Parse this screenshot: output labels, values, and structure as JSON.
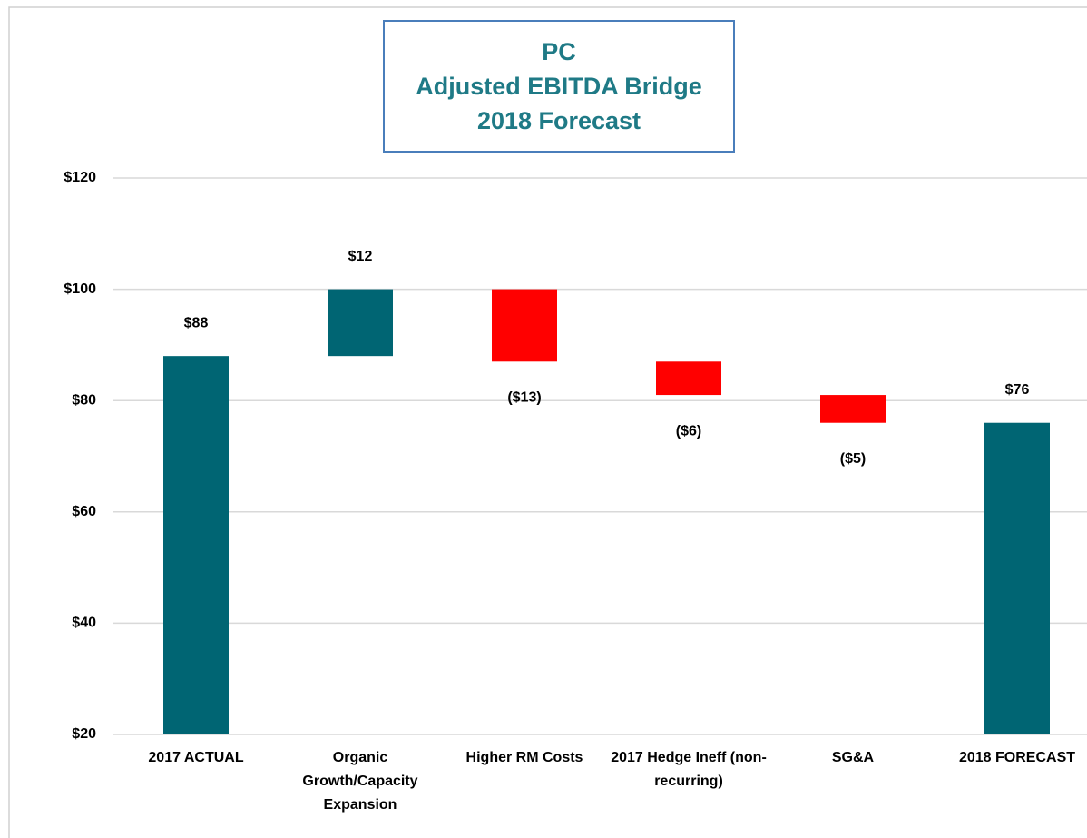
{
  "chart_data": {
    "type": "waterfall",
    "title": [
      "PC",
      "Adjusted EBITDA Bridge",
      "2018 Forecast"
    ],
    "categories": [
      "2017 ACTUAL",
      "Organic Growth/Capacity Expansion",
      "Higher RM Costs",
      "2017 Hedge Ineff (non-recurring)",
      "SG&A",
      "2018 FORECAST"
    ],
    "values": [
      88,
      12,
      -13,
      -6,
      -5,
      76
    ],
    "value_labels": [
      "$88",
      "$12",
      "($13)",
      "($6)",
      "($5)",
      "$76"
    ],
    "total": [
      true,
      false,
      false,
      false,
      false,
      true
    ],
    "colors": {
      "total": "#006573",
      "increase": "#006573",
      "decrease": "#ff0000"
    },
    "ylim": [
      20,
      120
    ],
    "yticks": [
      {
        "value": 20,
        "label": "$20"
      },
      {
        "value": 40,
        "label": "$40"
      },
      {
        "value": 60,
        "label": "$60"
      },
      {
        "value": 80,
        "label": "$80"
      },
      {
        "value": 100,
        "label": "$100"
      },
      {
        "value": 120,
        "label": "$120"
      }
    ],
    "grid": true
  }
}
